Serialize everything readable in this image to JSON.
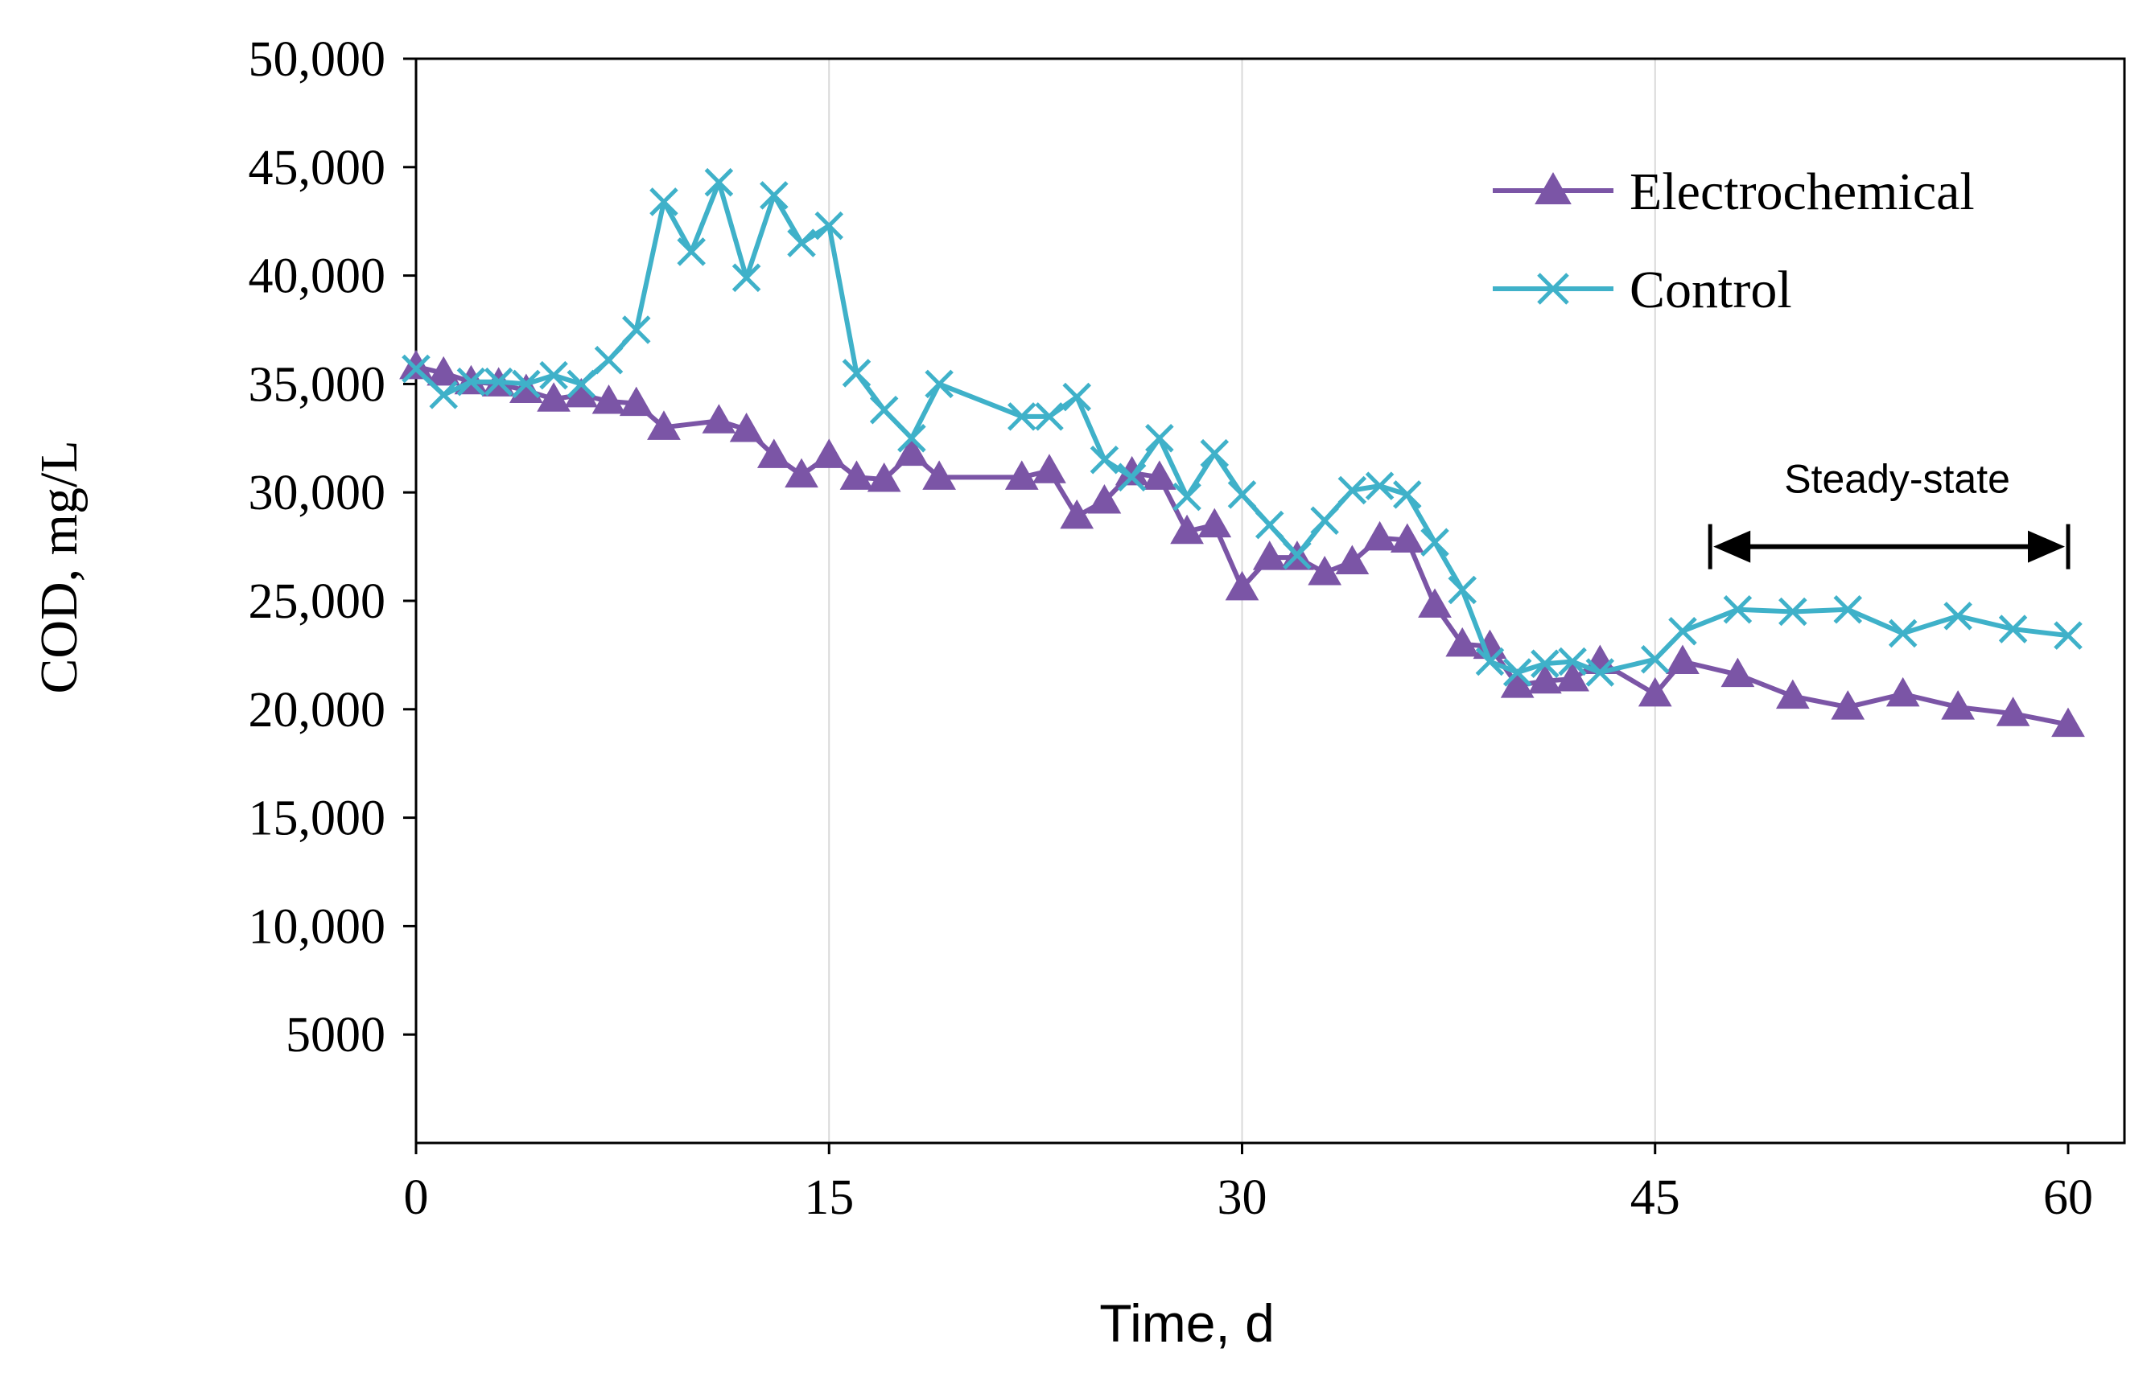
{
  "chart_data": {
    "type": "line",
    "title": "",
    "xlabel": "Time, d",
    "ylabel": "COD, mg/L",
    "xlim": [
      0,
      60
    ],
    "ylim": [
      0,
      50000
    ],
    "x_ticks": [
      0,
      15,
      30,
      45,
      60
    ],
    "x_tick_labels": [
      "0",
      "15",
      "30",
      "45",
      "60"
    ],
    "y_ticks": [
      5000,
      10000,
      15000,
      20000,
      25000,
      30000,
      35000,
      40000,
      45000,
      50000
    ],
    "y_tick_labels": [
      "5000",
      "10,000",
      "15,000",
      "20,000",
      "25,000",
      "30,000",
      "35,000",
      "40,000",
      "45,000",
      "50,000"
    ],
    "grid": "vertical",
    "legend_position": "top-right",
    "series": [
      {
        "name": "Electrochemical",
        "color": "#7b55a6",
        "marker": "triangle",
        "x": [
          0,
          1,
          2,
          3,
          4,
          5,
          6,
          7,
          8,
          9,
          11,
          12,
          13,
          14,
          15,
          16,
          17,
          18,
          19,
          22,
          23,
          24,
          25,
          26,
          27,
          28,
          29,
          30,
          31,
          32,
          33,
          34,
          35,
          36,
          37,
          38,
          39,
          40,
          41,
          42,
          43,
          45,
          46,
          48,
          50,
          52,
          54,
          56,
          58,
          60
        ],
        "values": [
          35800,
          35500,
          35100,
          35000,
          34700,
          34300,
          34500,
          34200,
          34100,
          33000,
          33300,
          32900,
          31700,
          30800,
          31700,
          30700,
          30600,
          31800,
          30700,
          30700,
          31000,
          28900,
          29600,
          30900,
          30700,
          28200,
          28500,
          25600,
          27000,
          27000,
          26300,
          26800,
          27900,
          27800,
          24800,
          23000,
          22900,
          21100,
          21300,
          21400,
          22200,
          20700,
          22200,
          21600,
          20600,
          20100,
          20700,
          20100,
          19800,
          19300
        ]
      },
      {
        "name": "Control",
        "color": "#3fb1c9",
        "marker": "x",
        "x": [
          0,
          1,
          2,
          3,
          4,
          5,
          6,
          7,
          8,
          9,
          10,
          11,
          12,
          13,
          14,
          15,
          16,
          17,
          18,
          19,
          22,
          23,
          24,
          25,
          26,
          27,
          28,
          29,
          30,
          31,
          32,
          33,
          34,
          35,
          36,
          37,
          38,
          39,
          40,
          41,
          42,
          43,
          45,
          46,
          48,
          50,
          52,
          54,
          56,
          58,
          60
        ],
        "values": [
          35700,
          34500,
          35100,
          35100,
          35000,
          35400,
          35000,
          36100,
          37500,
          43400,
          41100,
          44300,
          39900,
          43700,
          41500,
          42300,
          35500,
          33800,
          32500,
          35000,
          33500,
          33500,
          34400,
          31500,
          30700,
          32500,
          29800,
          31800,
          29900,
          28500,
          27100,
          28700,
          30100,
          30300,
          29900,
          27700,
          25500,
          22200,
          21700,
          22100,
          22200,
          21700,
          22300,
          23600,
          24600,
          24500,
          24600,
          23500,
          24300,
          23700,
          23400
        ]
      }
    ],
    "annotations": [
      {
        "text": "Steady-state",
        "x_start": 47,
        "x_end": 60,
        "y": 27500,
        "label_y": 30800
      }
    ]
  }
}
